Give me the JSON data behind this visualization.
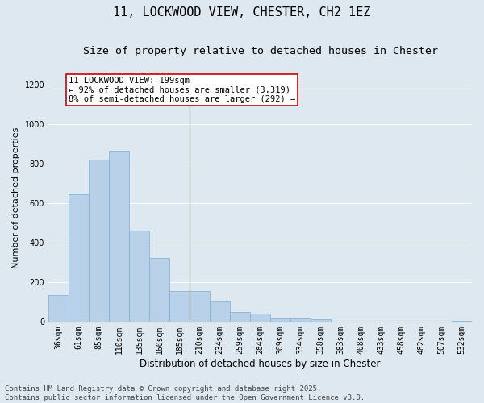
{
  "title": "11, LOCKWOOD VIEW, CHESTER, CH2 1EZ",
  "subtitle": "Size of property relative to detached houses in Chester",
  "xlabel": "Distribution of detached houses by size in Chester",
  "ylabel": "Number of detached properties",
  "categories": [
    "36sqm",
    "61sqm",
    "85sqm",
    "110sqm",
    "135sqm",
    "160sqm",
    "185sqm",
    "210sqm",
    "234sqm",
    "259sqm",
    "284sqm",
    "309sqm",
    "334sqm",
    "358sqm",
    "383sqm",
    "408sqm",
    "433sqm",
    "458sqm",
    "482sqm",
    "507sqm",
    "532sqm"
  ],
  "values": [
    135,
    645,
    820,
    865,
    460,
    320,
    155,
    155,
    100,
    50,
    40,
    15,
    15,
    10,
    0,
    0,
    0,
    0,
    0,
    0,
    5
  ],
  "bar_color": "#b8d0e8",
  "bar_edge_color": "#7aafd4",
  "vline_color": "#333333",
  "annotation_title": "11 LOCKWOOD VIEW: 199sqm",
  "annotation_line1": "← 92% of detached houses are smaller (3,319)",
  "annotation_line2": "8% of semi-detached houses are larger (292) →",
  "annotation_box_facecolor": "#ffffff",
  "annotation_box_edgecolor": "#cc0000",
  "ylim": [
    0,
    1250
  ],
  "yticks": [
    0,
    200,
    400,
    600,
    800,
    1000,
    1200
  ],
  "footer_line1": "Contains HM Land Registry data © Crown copyright and database right 2025.",
  "footer_line2": "Contains public sector information licensed under the Open Government Licence v3.0.",
  "background_color": "#dde8f0",
  "plot_background_color": "#dde8f0",
  "grid_color": "#ffffff",
  "title_fontsize": 11,
  "subtitle_fontsize": 9.5,
  "tick_fontsize": 7,
  "ylabel_fontsize": 8,
  "xlabel_fontsize": 8.5,
  "annotation_fontsize": 7.5,
  "footer_fontsize": 6.5
}
